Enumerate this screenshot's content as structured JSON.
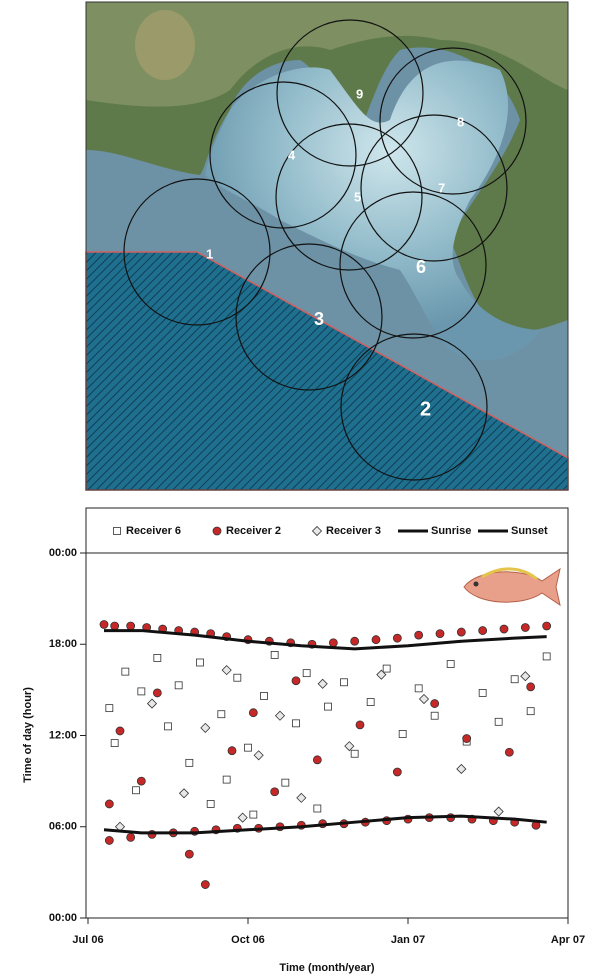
{
  "map": {
    "receivers": [
      "1",
      "2",
      "3",
      "4",
      "5",
      "6",
      "7",
      "8",
      "9"
    ]
  },
  "chart_data": {
    "type": "scatter",
    "x_label": "Time (month/year)",
    "y_label": "Time of day (hour)",
    "xlim": [
      0,
      9
    ],
    "xticks": [
      {
        "value": 0,
        "label": "Jul 06"
      },
      {
        "value": 3,
        "label": "Oct 06"
      },
      {
        "value": 6,
        "label": "Jan 07"
      },
      {
        "value": 9,
        "label": "Apr 07"
      }
    ],
    "ylim": [
      0,
      24
    ],
    "yticks": [
      {
        "value": 0,
        "label": "00:00"
      },
      {
        "value": 6,
        "label": "06:00"
      },
      {
        "value": 12,
        "label": "12:00"
      },
      {
        "value": 18,
        "label": "18:00"
      },
      {
        "value": 24,
        "label": "00:00"
      }
    ],
    "legend": "top",
    "series": [
      {
        "name": "Receiver 6",
        "marker": "square",
        "color": "#ffffff",
        "x": [
          0.4,
          0.5,
          0.7,
          0.9,
          1.0,
          1.3,
          1.5,
          1.7,
          1.9,
          2.1,
          2.3,
          2.5,
          2.6,
          2.8,
          3.0,
          3.1,
          3.3,
          3.5,
          3.7,
          3.9,
          4.1,
          4.3,
          4.5,
          4.8,
          5.0,
          5.3,
          5.6,
          5.9,
          6.2,
          6.5,
          6.8,
          7.1,
          7.4,
          7.7,
          8.0,
          8.3,
          8.6
        ],
        "values": [
          13.8,
          11.5,
          16.2,
          8.4,
          14.9,
          17.1,
          12.6,
          15.3,
          10.2,
          16.8,
          7.5,
          13.4,
          9.1,
          15.8,
          11.2,
          6.8,
          14.6,
          17.3,
          8.9,
          12.8,
          16.1,
          7.2,
          13.9,
          15.5,
          10.8,
          14.2,
          16.4,
          12.1,
          15.1,
          13.3,
          16.7,
          11.6,
          14.8,
          12.9,
          15.7,
          13.6,
          17.2
        ]
      },
      {
        "name": "Receiver 2",
        "marker": "circle",
        "color": "#c62828",
        "x": [
          0.3,
          0.5,
          0.8,
          1.1,
          1.4,
          1.7,
          2.0,
          2.3,
          2.6,
          3.0,
          3.4,
          3.8,
          4.2,
          4.6,
          5.0,
          5.4,
          5.8,
          6.2,
          6.6,
          7.0,
          7.4,
          7.8,
          8.2,
          8.6,
          0.4,
          0.8,
          1.2,
          1.6,
          2.0,
          2.4,
          2.8,
          3.2,
          3.6,
          4.0,
          4.4,
          4.8,
          5.2,
          5.6,
          6.0,
          6.4,
          6.8,
          7.2,
          7.6,
          8.0,
          8.4,
          0.4,
          0.6,
          1.0,
          1.3,
          1.9,
          2.2,
          2.7,
          3.1,
          3.5,
          3.9,
          4.3,
          5.1,
          5.8,
          6.5,
          7.1,
          7.9,
          8.3
        ],
        "values": [
          19.3,
          19.2,
          19.2,
          19.1,
          19.0,
          18.9,
          18.8,
          18.7,
          18.5,
          18.3,
          18.2,
          18.1,
          18.0,
          18.1,
          18.2,
          18.3,
          18.4,
          18.6,
          18.7,
          18.8,
          18.9,
          19.0,
          19.1,
          19.2,
          5.1,
          5.3,
          5.5,
          5.6,
          5.7,
          5.8,
          5.9,
          5.9,
          6.0,
          6.1,
          6.2,
          6.2,
          6.3,
          6.4,
          6.5,
          6.6,
          6.6,
          6.5,
          6.4,
          6.3,
          6.1,
          7.5,
          12.3,
          9.0,
          14.8,
          4.2,
          2.2,
          11.0,
          13.5,
          8.3,
          15.6,
          10.4,
          12.7,
          9.6,
          14.1,
          11.8,
          10.9,
          15.2
        ]
      },
      {
        "name": "Receiver 3",
        "marker": "diamond",
        "color": "#e8e8e8",
        "x": [
          0.6,
          1.2,
          1.8,
          2.2,
          2.6,
          2.9,
          3.2,
          3.6,
          4.0,
          4.4,
          4.9,
          5.5,
          6.3,
          7.0,
          7.7,
          8.2
        ],
        "values": [
          6.0,
          14.1,
          8.2,
          12.5,
          16.3,
          6.6,
          10.7,
          13.3,
          7.9,
          15.4,
          11.3,
          16.0,
          14.4,
          9.8,
          7.0,
          15.9
        ]
      },
      {
        "name": "Sunrise",
        "marker": "line",
        "color": "#111111",
        "x": [
          0.3,
          1,
          2,
          3,
          4,
          5,
          6,
          7,
          8,
          8.6
        ],
        "values": [
          5.8,
          5.6,
          5.6,
          5.8,
          6.0,
          6.3,
          6.6,
          6.7,
          6.5,
          6.3
        ]
      },
      {
        "name": "Sunset",
        "marker": "line",
        "color": "#111111",
        "x": [
          0.3,
          1,
          2,
          3,
          4,
          5,
          6,
          7,
          8,
          8.6
        ],
        "values": [
          18.9,
          18.9,
          18.6,
          18.2,
          17.9,
          17.7,
          17.9,
          18.2,
          18.4,
          18.5
        ]
      }
    ]
  }
}
